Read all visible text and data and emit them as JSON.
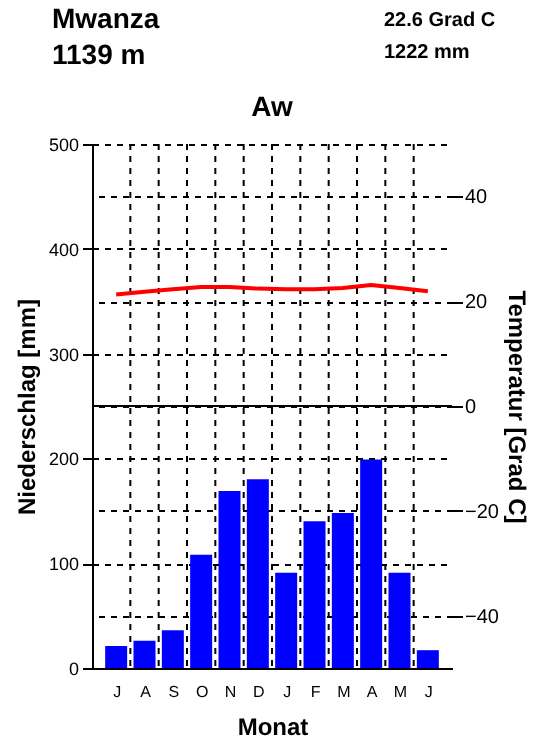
{
  "chart_data": {
    "type": "bar",
    "title": "Aw",
    "annotations": [
      "Mwanza",
      "1139 m",
      "22.6 Grad C",
      "1222 mm"
    ],
    "xlabel": "Monat",
    "ylabel": "Niederschlag [mm]",
    "y2label": "Temperatur [Grad C]",
    "categories": [
      "J",
      "A",
      "S",
      "O",
      "N",
      "D",
      "J",
      "F",
      "M",
      "A",
      "M",
      "J"
    ],
    "series": [
      {
        "color": "#0000ff",
        "values": [
          21,
          26,
          36,
          108,
          169,
          180,
          91,
          140,
          148,
          199,
          91,
          17
        ]
      },
      {
        "type": "line",
        "axis": "y2",
        "color": "#ff0000",
        "values": [
          21.3,
          21.8,
          22.3,
          22.7,
          22.7,
          22.4,
          22.3,
          22.3,
          22.5,
          23.1,
          22.5,
          21.9
        ]
      }
    ],
    "ylim": [
      0,
      500
    ],
    "yticks": [
      0,
      100,
      200,
      300,
      400,
      500
    ],
    "y2lim": [
      -50,
      50
    ],
    "y2ticks": [
      -40,
      -20,
      0,
      20,
      40
    ],
    "ref_lines": [
      {
        "axis": "y2",
        "value": 0,
        "color": "#000000"
      }
    ],
    "grid": true
  }
}
